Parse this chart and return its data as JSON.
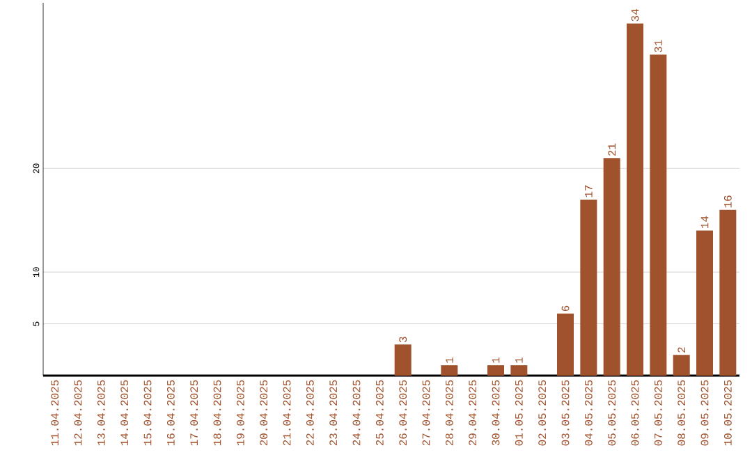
{
  "chart_data": {
    "type": "bar",
    "categories": [
      "11.04.2025",
      "12.04.2025",
      "13.04.2025",
      "14.04.2025",
      "15.04.2025",
      "16.04.2025",
      "17.04.2025",
      "18.04.2025",
      "19.04.2025",
      "20.04.2025",
      "21.04.2025",
      "22.04.2025",
      "23.04.2025",
      "24.04.2025",
      "25.04.2025",
      "26.04.2025",
      "27.04.2025",
      "28.04.2025",
      "29.04.2025",
      "30.04.2025",
      "01.05.2025",
      "02.05.2025",
      "03.05.2025",
      "04.05.2025",
      "05.05.2025",
      "06.05.2025",
      "07.05.2025",
      "08.05.2025",
      "09.05.2025",
      "10.05.2025"
    ],
    "values": [
      0,
      0,
      0,
      0,
      0,
      0,
      0,
      0,
      0,
      0,
      0,
      0,
      0,
      0,
      0,
      3,
      0,
      1,
      0,
      1,
      1,
      0,
      6,
      17,
      21,
      34,
      31,
      2,
      14,
      16
    ],
    "value_labels": [
      null,
      null,
      null,
      null,
      null,
      null,
      null,
      null,
      null,
      null,
      null,
      null,
      null,
      null,
      null,
      "3",
      null,
      "1",
      null,
      "1",
      "1",
      null,
      "6",
      "17",
      "21",
      "34",
      "31",
      "2",
      "14",
      "16"
    ],
    "color": "#a0522d",
    "ylim": [
      0,
      36
    ],
    "yticks": [
      5,
      10,
      20
    ],
    "grid": "y"
  }
}
